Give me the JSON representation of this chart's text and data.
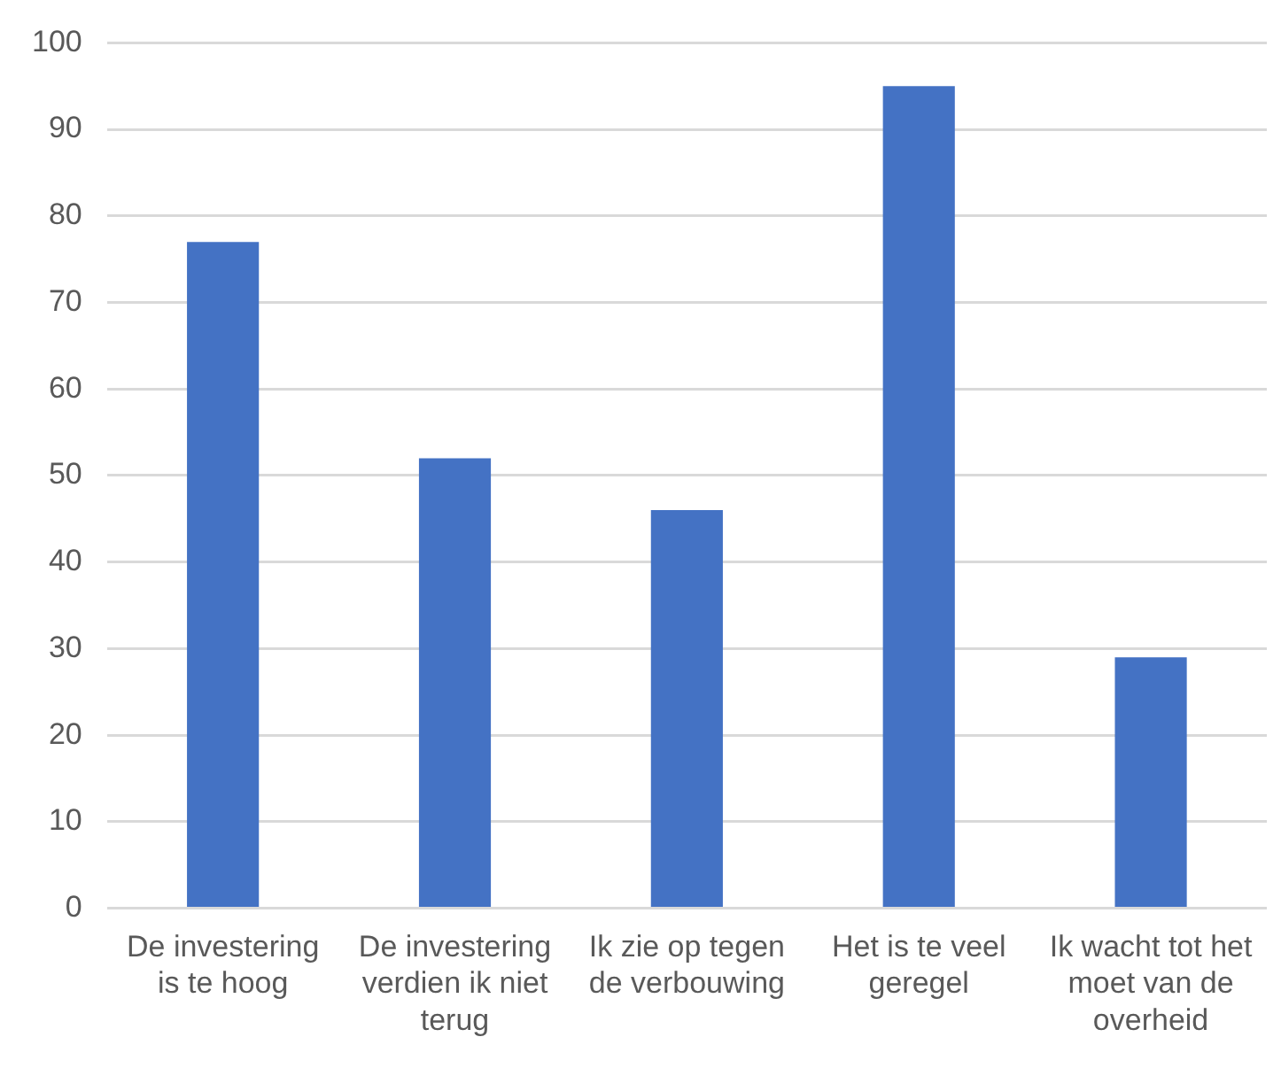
{
  "chart_data": {
    "type": "bar",
    "categories": [
      "De investering is te hoog",
      "De investering verdien ik niet terug",
      "Ik zie op tegen de verbouwing",
      "Het is te veel geregel",
      "Ik wacht tot het moet van de overheid"
    ],
    "values": [
      77,
      52,
      46,
      95,
      29
    ],
    "color": "#4472c4",
    "ylim": [
      0,
      100
    ],
    "yticks": [
      0,
      10,
      20,
      30,
      40,
      50,
      60,
      70,
      80,
      90,
      100
    ],
    "grid": "y"
  }
}
